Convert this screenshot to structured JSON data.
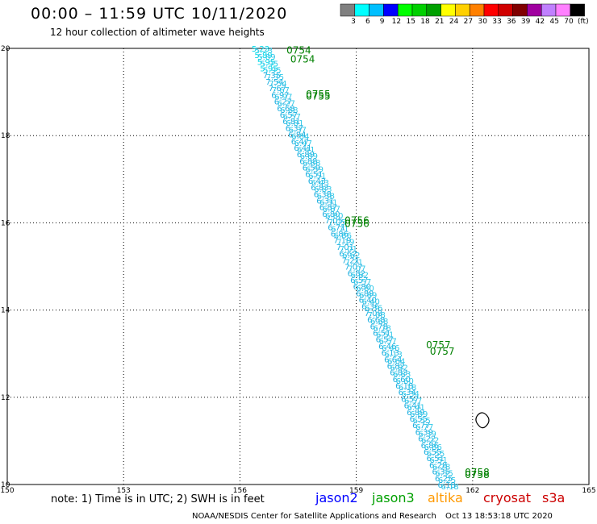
{
  "header": {
    "title": "00:00 – 11:59 UTC 10/11/2020",
    "subtitle": "12 hour collection of altimeter wave heights"
  },
  "colorbar": {
    "colors": [
      "#808080",
      "#00ffff",
      "#00bfff",
      "#0000ff",
      "#00ff00",
      "#00d000",
      "#00a000",
      "#ffff00",
      "#ffd000",
      "#ff8000",
      "#ff0000",
      "#d00000",
      "#800000",
      "#a000a0",
      "#c080ff",
      "#ff80ff",
      "#000000"
    ],
    "labels": [
      "3",
      "6",
      "9",
      "12",
      "15",
      "18",
      "21",
      "24",
      "27",
      "30",
      "33",
      "36",
      "39",
      "42",
      "45",
      "70",
      "(ft)"
    ]
  },
  "note": "note: 1) Time is in UTC; 2) SWH is in feet",
  "missions": [
    {
      "name": "jason2",
      "color": "#0000ff"
    },
    {
      "name": "jason3",
      "color": "#00a000"
    },
    {
      "name": "altika",
      "color": "#ff9900"
    },
    {
      "name": "cryosat",
      "color": "#cc0000"
    },
    {
      "name": "s3a",
      "color": "#cc0000"
    }
  ],
  "footer": {
    "left": "NOAA/NESDIS Center for Satellite Applications and Research",
    "right": "Oct 13 18:53:18 UTC 2020"
  },
  "chart_data": {
    "type": "scatter",
    "title": "00:00 – 11:59 UTC 10/11/2020",
    "subtitle": "12 hour collection of altimeter wave heights",
    "xlim": [
      150,
      165
    ],
    "ylim": [
      10,
      20
    ],
    "xticks": [
      "150",
      "153",
      "156",
      "159",
      "162",
      "165"
    ],
    "yticks": [
      "10",
      "12",
      "14",
      "16",
      "18",
      "20"
    ],
    "grid": true,
    "series": [
      {
        "name": "jason3",
        "track_start": [
          156.3,
          20.0
        ],
        "track_end": [
          161.1,
          10.0
        ],
        "swh_values": [
          "5.23",
          "5.89",
          "5.95",
          "5.95",
          "7.35",
          "7.54",
          "7.67",
          "6.97",
          "6.27",
          "6.68",
          "6.57",
          "6.81",
          "6.37",
          "6.84",
          "6.47",
          "6.41",
          "6.89",
          "6.88",
          "6.59",
          "6.51",
          "6.43",
          "6.83",
          "6.38",
          "6.31",
          "6.87",
          "6.80",
          "7.05",
          "6.71",
          "6.86",
          "7.19",
          "7.01",
          "6.62",
          "7.21",
          "7.07",
          "6.82",
          "6.57",
          "6.80",
          "6.89",
          "6.40",
          "6.36",
          "7.08",
          "6.68",
          "6.78",
          "6.51",
          "6.57",
          "6.46",
          "6.13",
          "6.64",
          "6.82",
          "6.83",
          "6.60",
          "6.18",
          "6.34",
          "6.57",
          "6.41",
          "6.89",
          "6.55",
          "6.77",
          "6.39",
          "6.22",
          "6.86",
          "6.55",
          "6.51",
          "6.28",
          "6.35",
          "6.25",
          "6.18"
        ],
        "time_labels": [
          {
            "text": "0754",
            "lon": 157.2,
            "lat": 19.95
          },
          {
            "text": "0754",
            "lon": 157.3,
            "lat": 19.75
          },
          {
            "text": "0755",
            "lon": 157.7,
            "lat": 18.95
          },
          {
            "text": "0755",
            "lon": 157.7,
            "lat": 18.9
          },
          {
            "text": "0756",
            "lon": 158.7,
            "lat": 16.05
          },
          {
            "text": "0756",
            "lon": 158.7,
            "lat": 15.98
          },
          {
            "text": "0757",
            "lon": 160.8,
            "lat": 13.2
          },
          {
            "text": "0757",
            "lon": 160.9,
            "lat": 13.05
          },
          {
            "text": "0758",
            "lon": 161.8,
            "lat": 10.28
          },
          {
            "text": "0758",
            "lon": 161.8,
            "lat": 10.22
          }
        ]
      }
    ],
    "island_outline": {
      "lon": 162.2,
      "lat": 11.45
    }
  }
}
